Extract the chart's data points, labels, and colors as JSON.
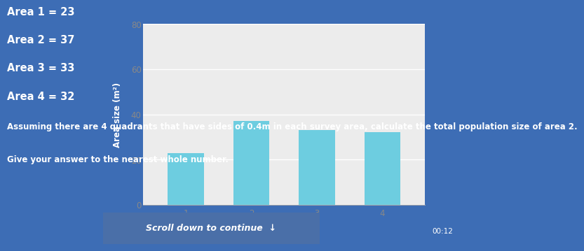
{
  "title_lines": [
    "Area 1 = 23",
    "Area 2 = 37",
    "Area 3 = 33",
    "Area 4 = 32"
  ],
  "question_line1": "Assuming there are 4 quadrants that have sides of 0.4m in each survey area, calculate the total population size of area 2.",
  "question_line2": "Give your answer to the nearest whole number.",
  "bar_values": [
    23,
    37,
    33,
    32
  ],
  "bar_color": "#6dcde0",
  "ylabel": "Area size (m²)",
  "x_labels": [
    "1",
    "2",
    "3",
    "4"
  ],
  "ylim": [
    0,
    80
  ],
  "yticks": [
    0,
    20,
    40,
    60,
    80
  ],
  "background_color": "#3d6db5",
  "chart_bg": "#ececec",
  "scroll_text": "Scroll down to continue  ↓",
  "scroll_bg": "#4a6fa8",
  "timer_text": "00:12",
  "text_color": "#ffffff",
  "tick_color": "#888888",
  "font_size_area": 10.5,
  "font_size_question": 8.5
}
